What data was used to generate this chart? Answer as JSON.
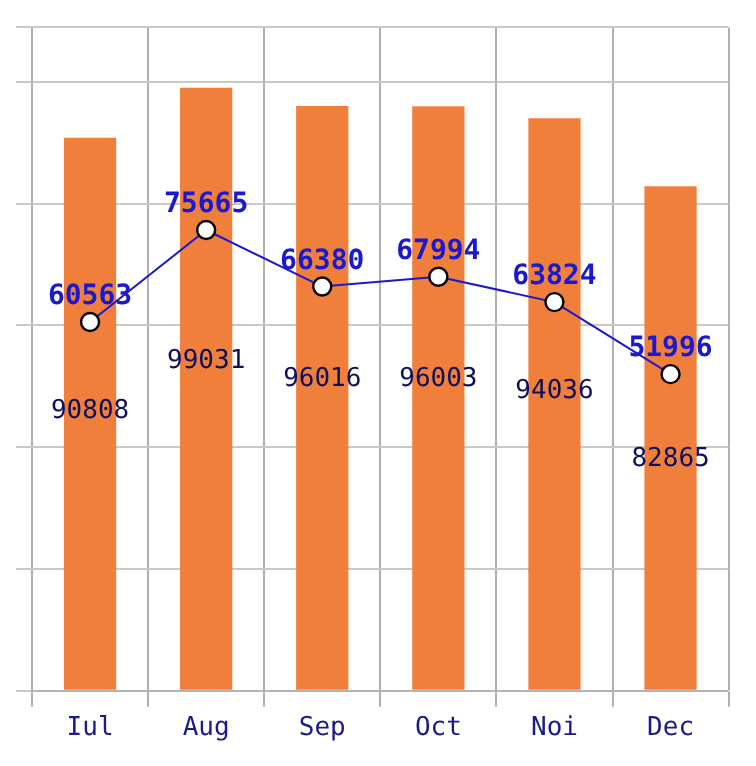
{
  "chart_data": {
    "type": "bar",
    "categories": [
      "Iul",
      "Aug",
      "Sep",
      "Oct",
      "Noi",
      "Dec"
    ],
    "series": [
      {
        "color": "#f07f3c",
        "values": [
          90808,
          99031,
          96016,
          96003,
          94036,
          82865
        ]
      },
      {
        "type": "line",
        "color": "#1a1acc",
        "values": [
          60563,
          75665,
          66380,
          67994,
          63824,
          51996
        ]
      }
    ],
    "data_labels": true,
    "grid": true,
    "legend": false,
    "tick_labels": "x",
    "marker": "circle",
    "line_style": "solid"
  }
}
